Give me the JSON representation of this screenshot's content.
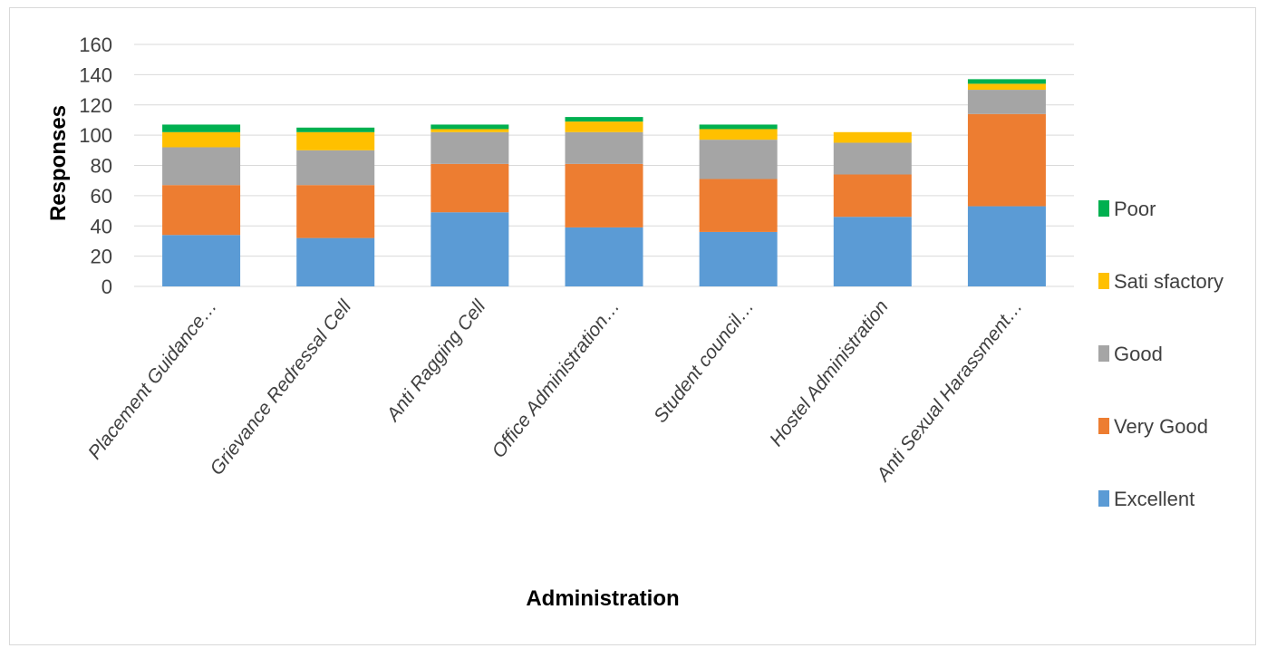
{
  "chart_data": {
    "type": "bar",
    "stacked": true,
    "categories": [
      "Placement Guidance…",
      "Grievance Redressal Cell",
      "Anti Ragging Cell",
      "Office Administration…",
      "Student council…",
      "Hostel Administration",
      "Anti Sexual Harassment…"
    ],
    "series": [
      {
        "name": "Excellent",
        "color": "#5b9bd5",
        "values": [
          34,
          32,
          49,
          39,
          36,
          46,
          53
        ]
      },
      {
        "name": "Very Good",
        "color": "#ed7d31",
        "values": [
          33,
          35,
          32,
          42,
          35,
          28,
          61
        ]
      },
      {
        "name": "Good",
        "color": "#a5a5a5",
        "values": [
          25,
          23,
          21,
          21,
          26,
          21,
          16
        ]
      },
      {
        "name": "Satisfactory",
        "color": "#ffc000",
        "values": [
          10,
          12,
          2,
          7,
          7,
          7,
          4
        ]
      },
      {
        "name": "Poor",
        "color": "#00b050",
        "values": [
          5,
          3,
          3,
          3,
          3,
          0,
          3
        ]
      }
    ],
    "xlabel": "Administration",
    "ylabel": "Responses",
    "ylim": [
      0,
      160
    ],
    "yticks": [
      0,
      20,
      40,
      60,
      80,
      100,
      120,
      140,
      160
    ],
    "grid": true,
    "legend_position": "right",
    "legend_labels": [
      "Poor",
      "Sati sfactory",
      "Good",
      "Very Good",
      "Excellent"
    ]
  }
}
